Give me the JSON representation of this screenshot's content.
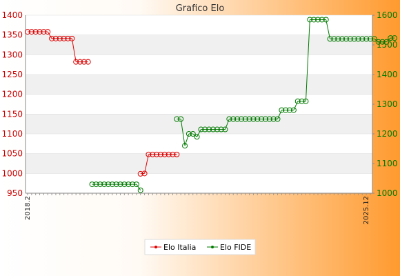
{
  "colors": {
    "background_start": "#ffffff",
    "background_end": "#ff9a2e",
    "italia": "#dd0000",
    "fide": "#007a00",
    "band": "#f0f0f0",
    "plot_bg": "#ffffff"
  },
  "chart_data": {
    "type": "line",
    "title": "Grafico Elo",
    "xlabel": "",
    "y_left": {
      "label": "",
      "lim": [
        950,
        1400
      ],
      "ticks": [
        950,
        1000,
        1050,
        1100,
        1150,
        1200,
        1250,
        1300,
        1350,
        1400
      ]
    },
    "y_right": {
      "label": "",
      "lim": [
        1000,
        1600
      ],
      "ticks": [
        1000,
        1100,
        1200,
        1300,
        1400,
        1500,
        1600
      ]
    },
    "grid": "horizontal-bands",
    "legend_position": "bottom-center",
    "x_tick_count": 86,
    "x_ticks_visible": [
      {
        "index": 0,
        "label": "2018.2"
      },
      {
        "index": 84,
        "label": "2025.12"
      }
    ],
    "series": [
      {
        "name": "Elo Italia",
        "axis": "left",
        "color": "#dd0000",
        "points": [
          [
            0,
            1358
          ],
          [
            1,
            1358
          ],
          [
            2,
            1358
          ],
          [
            3,
            1358
          ],
          [
            4,
            1358
          ],
          [
            5,
            1358
          ],
          [
            6,
            1341
          ],
          [
            7,
            1341
          ],
          [
            8,
            1341
          ],
          [
            9,
            1341
          ],
          [
            10,
            1341
          ],
          [
            11,
            1341
          ],
          [
            12,
            1282
          ],
          [
            13,
            1282
          ],
          [
            14,
            1282
          ],
          [
            15,
            1282
          ],
          [
            28,
            999
          ],
          [
            29,
            1000
          ],
          [
            30,
            1048
          ],
          [
            31,
            1048
          ],
          [
            32,
            1048
          ],
          [
            33,
            1048
          ],
          [
            34,
            1048
          ],
          [
            35,
            1048
          ],
          [
            36,
            1048
          ],
          [
            37,
            1048
          ]
        ]
      },
      {
        "name": "Elo FIDE",
        "axis": "right",
        "color": "#007a00",
        "points": [
          [
            16,
            1030
          ],
          [
            17,
            1030
          ],
          [
            18,
            1030
          ],
          [
            19,
            1030
          ],
          [
            20,
            1030
          ],
          [
            21,
            1030
          ],
          [
            22,
            1030
          ],
          [
            23,
            1030
          ],
          [
            24,
            1030
          ],
          [
            25,
            1030
          ],
          [
            26,
            1030
          ],
          [
            27,
            1030
          ],
          [
            28,
            1010
          ],
          [
            37,
            1250
          ],
          [
            38,
            1250
          ],
          [
            39,
            1160
          ],
          [
            40,
            1200
          ],
          [
            41,
            1200
          ],
          [
            42,
            1190
          ],
          [
            43,
            1215
          ],
          [
            44,
            1215
          ],
          [
            45,
            1215
          ],
          [
            46,
            1215
          ],
          [
            47,
            1215
          ],
          [
            48,
            1215
          ],
          [
            49,
            1215
          ],
          [
            50,
            1250
          ],
          [
            51,
            1250
          ],
          [
            52,
            1250
          ],
          [
            53,
            1250
          ],
          [
            54,
            1250
          ],
          [
            55,
            1250
          ],
          [
            56,
            1250
          ],
          [
            57,
            1250
          ],
          [
            58,
            1250
          ],
          [
            59,
            1250
          ],
          [
            60,
            1250
          ],
          [
            61,
            1250
          ],
          [
            62,
            1250
          ],
          [
            63,
            1280
          ],
          [
            64,
            1280
          ],
          [
            65,
            1280
          ],
          [
            66,
            1280
          ],
          [
            67,
            1310
          ],
          [
            68,
            1310
          ],
          [
            69,
            1310
          ],
          [
            70,
            1585
          ],
          [
            71,
            1585
          ],
          [
            72,
            1585
          ],
          [
            73,
            1585
          ],
          [
            74,
            1585
          ],
          [
            75,
            1520
          ],
          [
            76,
            1520
          ],
          [
            77,
            1520
          ],
          [
            78,
            1520
          ],
          [
            79,
            1520
          ],
          [
            80,
            1520
          ],
          [
            81,
            1520
          ],
          [
            82,
            1520
          ],
          [
            83,
            1520
          ],
          [
            84,
            1520
          ],
          [
            85,
            1520
          ],
          [
            86,
            1520
          ],
          [
            87,
            1510
          ],
          [
            88,
            1510
          ],
          [
            89,
            1510
          ],
          [
            90,
            1523
          ],
          [
            91,
            1523
          ]
        ]
      }
    ]
  }
}
